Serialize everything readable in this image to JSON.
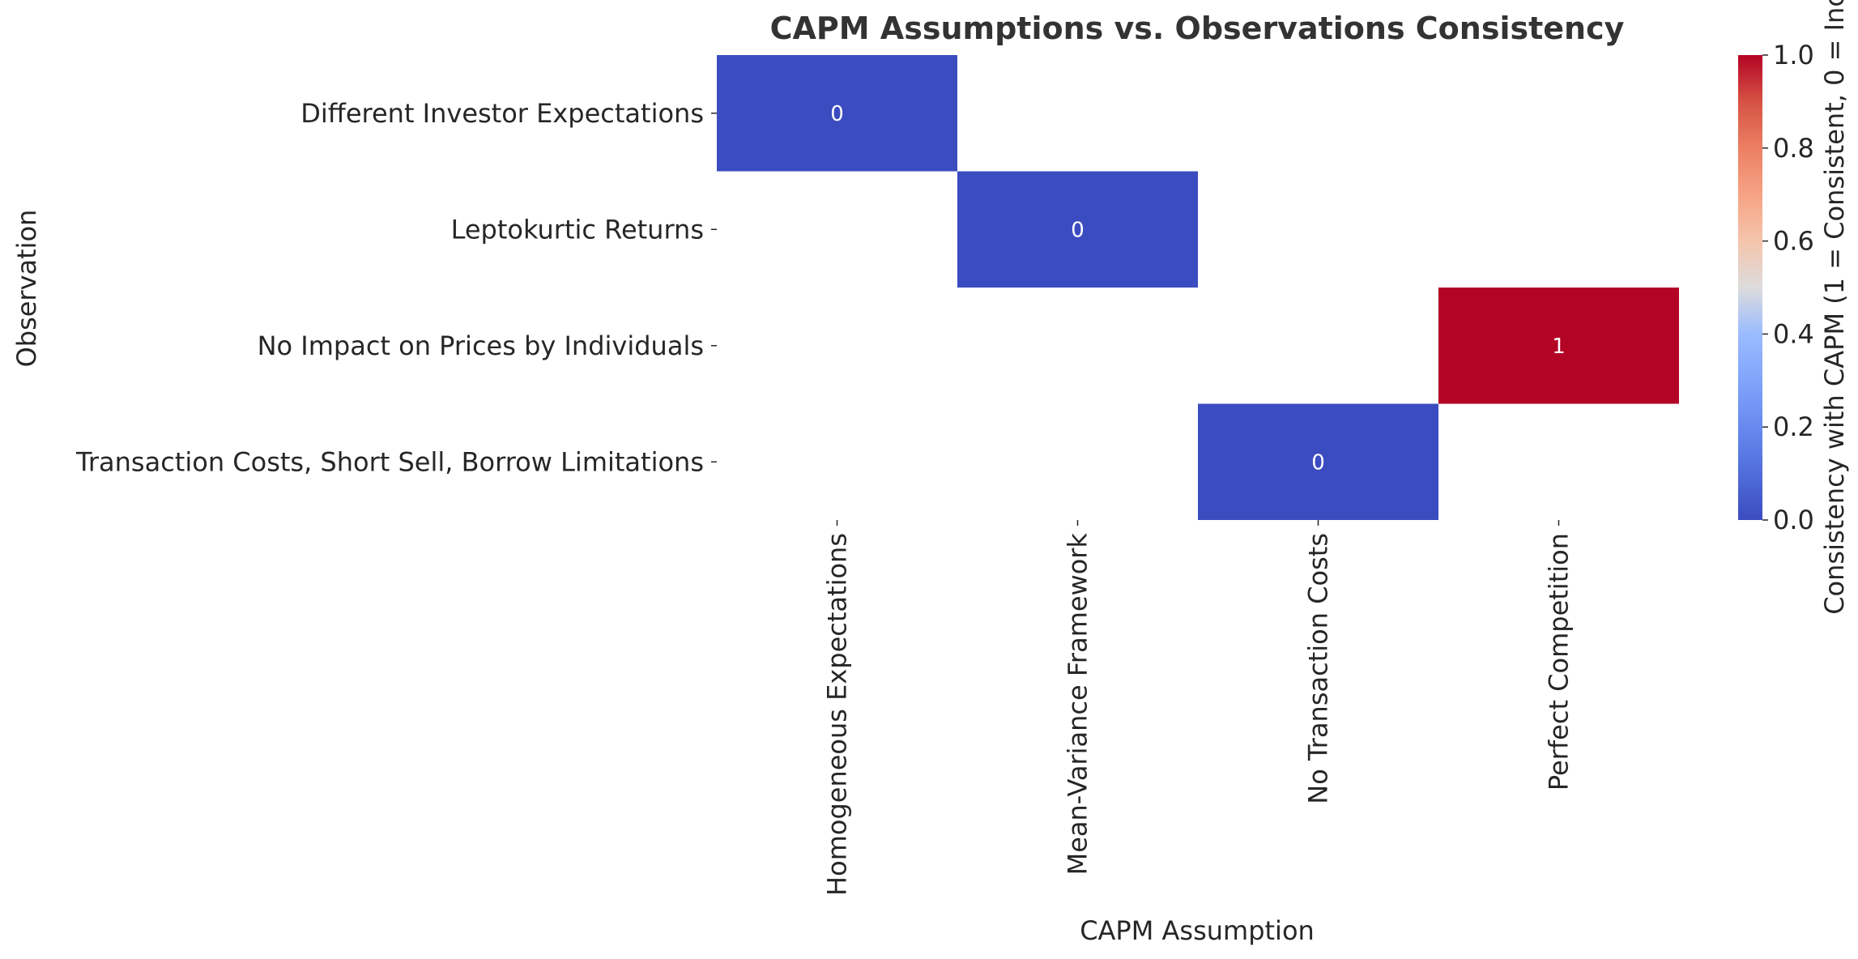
{
  "chart_data": {
    "type": "heatmap",
    "title": "CAPM Assumptions vs. Observations Consistency",
    "xlabel": "CAPM Assumption",
    "ylabel": "Observation",
    "x_categories": [
      "Homogeneous Expectations",
      "Mean-Variance Framework",
      "No Transaction Costs",
      "Perfect Competition"
    ],
    "y_categories": [
      "Different Investor Expectations",
      "Leptokurtic Returns",
      "No Impact on Prices by Individuals",
      "Transaction Costs, Short Sell, Borrow Limitations"
    ],
    "cells": [
      {
        "x": "Homogeneous Expectations",
        "y": "Different Investor Expectations",
        "value": 0,
        "label": "0"
      },
      {
        "x": "Mean-Variance Framework",
        "y": "Leptokurtic Returns",
        "value": 0,
        "label": "0"
      },
      {
        "x": "Perfect Competition",
        "y": "No Impact on Prices by Individuals",
        "value": 1,
        "label": "1"
      },
      {
        "x": "No Transaction Costs",
        "y": "Transaction Costs, Short Sell, Borrow Limitations",
        "value": 0,
        "label": "0"
      }
    ],
    "colorscale": "coolwarm",
    "color_low": "#3b4cc0",
    "color_high": "#b40426",
    "colorbar": {
      "label": "Consistency with CAPM (1 = Consistent, 0 = Incon",
      "range": [
        0,
        1
      ],
      "ticks": [
        "0.0",
        "0.2",
        "0.4",
        "0.6",
        "0.8",
        "1.0"
      ],
      "tick_values": [
        0,
        0.2,
        0.4,
        0.6,
        0.8,
        1.0
      ]
    },
    "grid": false
  }
}
